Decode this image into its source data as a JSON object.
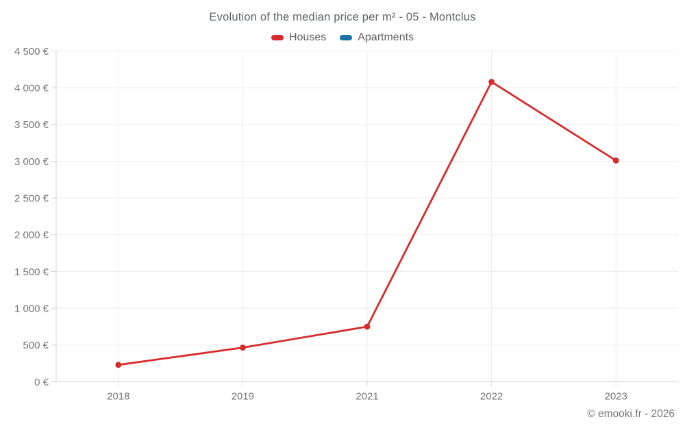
{
  "chart_data": {
    "type": "line",
    "title": "Evolution of the median price per m² - 05 - Montclus",
    "categories": [
      "2018",
      "2019",
      "2021",
      "2022",
      "2023"
    ],
    "series": [
      {
        "name": "Houses",
        "color": "#d62b2b",
        "values": [
          230,
          465,
          750,
          4080,
          3010
        ]
      },
      {
        "name": "Apartments",
        "color": "#1673a2",
        "values": []
      }
    ],
    "ylim": [
      0,
      4500
    ],
    "y_tick_step": 500,
    "y_tick_labels": [
      "0 €",
      "500 €",
      "1 000 €",
      "1 500 €",
      "2 000 €",
      "2 500 €",
      "3 000 €",
      "3 500 €",
      "4 000 €",
      "4 500 €"
    ],
    "xlabel": "",
    "ylabel": "",
    "grid": true,
    "legend_position": "top"
  },
  "footer": {
    "credit": "© emooki.fr - 2026"
  },
  "colors": {
    "grid": "#ededed",
    "axis": "#d6d6d6",
    "tick_text": "#757575",
    "title_text": "#5f6368",
    "houses": "#d62b2b",
    "apartments": "#1673a2"
  }
}
